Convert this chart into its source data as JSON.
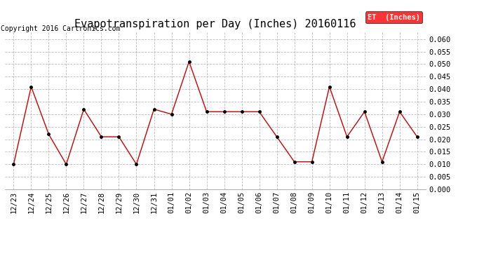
{
  "title": "Evapotranspiration per Day (Inches) 20160116",
  "copyright": "Copyright 2016 Cartronics.com",
  "legend_label": "ET  (Inches)",
  "legend_bg": "#ff0000",
  "legend_text_color": "#ffffff",
  "x_labels": [
    "12/23",
    "12/24",
    "12/25",
    "12/26",
    "12/27",
    "12/28",
    "12/29",
    "12/30",
    "12/31",
    "01/01",
    "01/02",
    "01/03",
    "01/04",
    "01/05",
    "01/06",
    "01/07",
    "01/08",
    "01/09",
    "01/10",
    "01/11",
    "01/12",
    "01/13",
    "01/14",
    "01/15"
  ],
  "y_values": [
    0.01,
    0.041,
    0.022,
    0.01,
    0.032,
    0.021,
    0.021,
    0.01,
    0.032,
    0.03,
    0.051,
    0.031,
    0.031,
    0.031,
    0.031,
    0.021,
    0.011,
    0.011,
    0.041,
    0.021,
    0.031,
    0.011,
    0.031,
    0.021
  ],
  "ylim": [
    0.0,
    0.063
  ],
  "yticks": [
    0.0,
    0.005,
    0.01,
    0.015,
    0.02,
    0.025,
    0.03,
    0.035,
    0.04,
    0.045,
    0.05,
    0.055,
    0.06
  ],
  "line_color": "#cc0000",
  "marker_color": "#000000",
  "bg_color": "#ffffff",
  "grid_color": "#bbbbbb",
  "title_fontsize": 11,
  "copyright_fontsize": 7,
  "tick_fontsize": 7.5,
  "legend_fontsize": 7.5
}
